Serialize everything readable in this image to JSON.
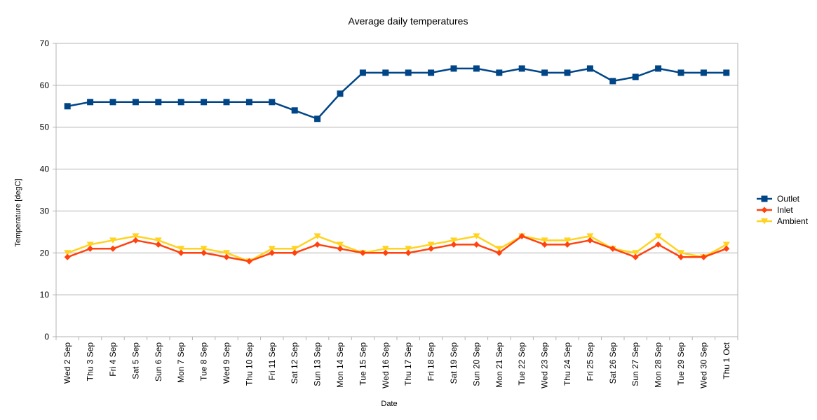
{
  "chart_data": {
    "type": "line",
    "title": "Average daily temperatures",
    "xlabel": "Date",
    "ylabel": "Temperature [degC]",
    "ylim": [
      0,
      70
    ],
    "yticks": [
      0,
      10,
      20,
      30,
      40,
      50,
      60,
      70
    ],
    "grid": true,
    "legend_position": "right",
    "categories": [
      "Wed 2 Sep",
      "Thu 3 Sep",
      "Fri 4 Sep",
      "Sat 5 Sep",
      "Sun 6 Sep",
      "Mon 7 Sep",
      "Tue 8 Sep",
      "Wed 9 Sep",
      "Thu 10 Sep",
      "Fri 11 Sep",
      "Sat 12 Sep",
      "Sun 13 Sep",
      "Mon 14 Sep",
      "Tue 15 Sep",
      "Wed 16 Sep",
      "Thu 17 Sep",
      "Fri 18 Sep",
      "Sat 19 Sep",
      "Sun 20 Sep",
      "Mon 21 Sep",
      "Tue 22 Sep",
      "Wed 23 Sep",
      "Thu 24 Sep",
      "Fri 25 Sep",
      "Sat 26 Sep",
      "Sun 27 Sep",
      "Mon 28 Sep",
      "Tue 29 Sep",
      "Wed 30 Sep",
      "Thu 1 Oct"
    ],
    "series": [
      {
        "name": "Outlet",
        "color": "#004586",
        "marker": "square",
        "values": [
          55,
          56,
          56,
          56,
          56,
          56,
          56,
          56,
          56,
          56,
          54,
          52,
          58,
          63,
          63,
          63,
          63,
          64,
          64,
          63,
          64,
          63,
          63,
          64,
          61,
          62,
          64,
          63,
          63,
          63
        ]
      },
      {
        "name": "Inlet",
        "color": "#ff420e",
        "marker": "diamond",
        "values": [
          19,
          21,
          21,
          23,
          22,
          20,
          20,
          19,
          18,
          20,
          20,
          22,
          21,
          20,
          20,
          20,
          21,
          22,
          22,
          20,
          24,
          22,
          22,
          23,
          21,
          19,
          22,
          19,
          19,
          21
        ]
      },
      {
        "name": "Ambient",
        "color": "#ffd320",
        "marker": "triangle-down",
        "values": [
          20,
          22,
          23,
          24,
          23,
          21,
          21,
          20,
          18,
          21,
          21,
          24,
          22,
          20,
          21,
          21,
          22,
          23,
          24,
          21,
          24,
          23,
          23,
          24,
          21,
          20,
          24,
          20,
          19,
          22
        ]
      }
    ]
  }
}
